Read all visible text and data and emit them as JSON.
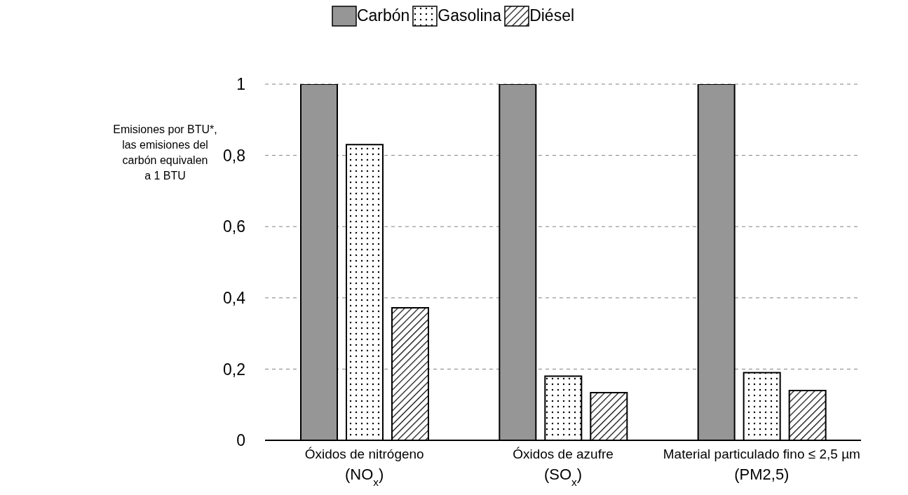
{
  "chart_data": {
    "type": "bar",
    "ylabel": "Emisiones por BTU*,\nlas emisiones del\ncarbón equivalen\na 1 BTU",
    "categories": [
      "Óxidos de nitrógeno\n(NO$_{x}$)",
      "Óxidos de azufre\n(SO$_{x}$)",
      "Material particulado fino ≤ 2,5 µm\n(PM2,5)"
    ],
    "series": [
      {
        "name": "Carbón",
        "color": "#969696",
        "values": [
          1,
          1,
          1
        ]
      },
      {
        "name": "Gasolina",
        "color": "#000000",
        "values": [
          0.83,
          0.18,
          0.19
        ]
      },
      {
        "name": "Diésel",
        "color": "#000000",
        "values": [
          0.372,
          0.134,
          0.14
        ]
      }
    ],
    "ylim": [
      0,
      1
    ],
    "yticks": [
      0,
      {
        "value": 0.2,
        "label": "0,2"
      },
      {
        "value": 0.4,
        "label": "0,4"
      },
      {
        "value": 0.6,
        "label": "0,6"
      },
      {
        "value": 0.8,
        "label": "0,8"
      },
      1
    ],
    "grid": "y",
    "legend": "top"
  }
}
